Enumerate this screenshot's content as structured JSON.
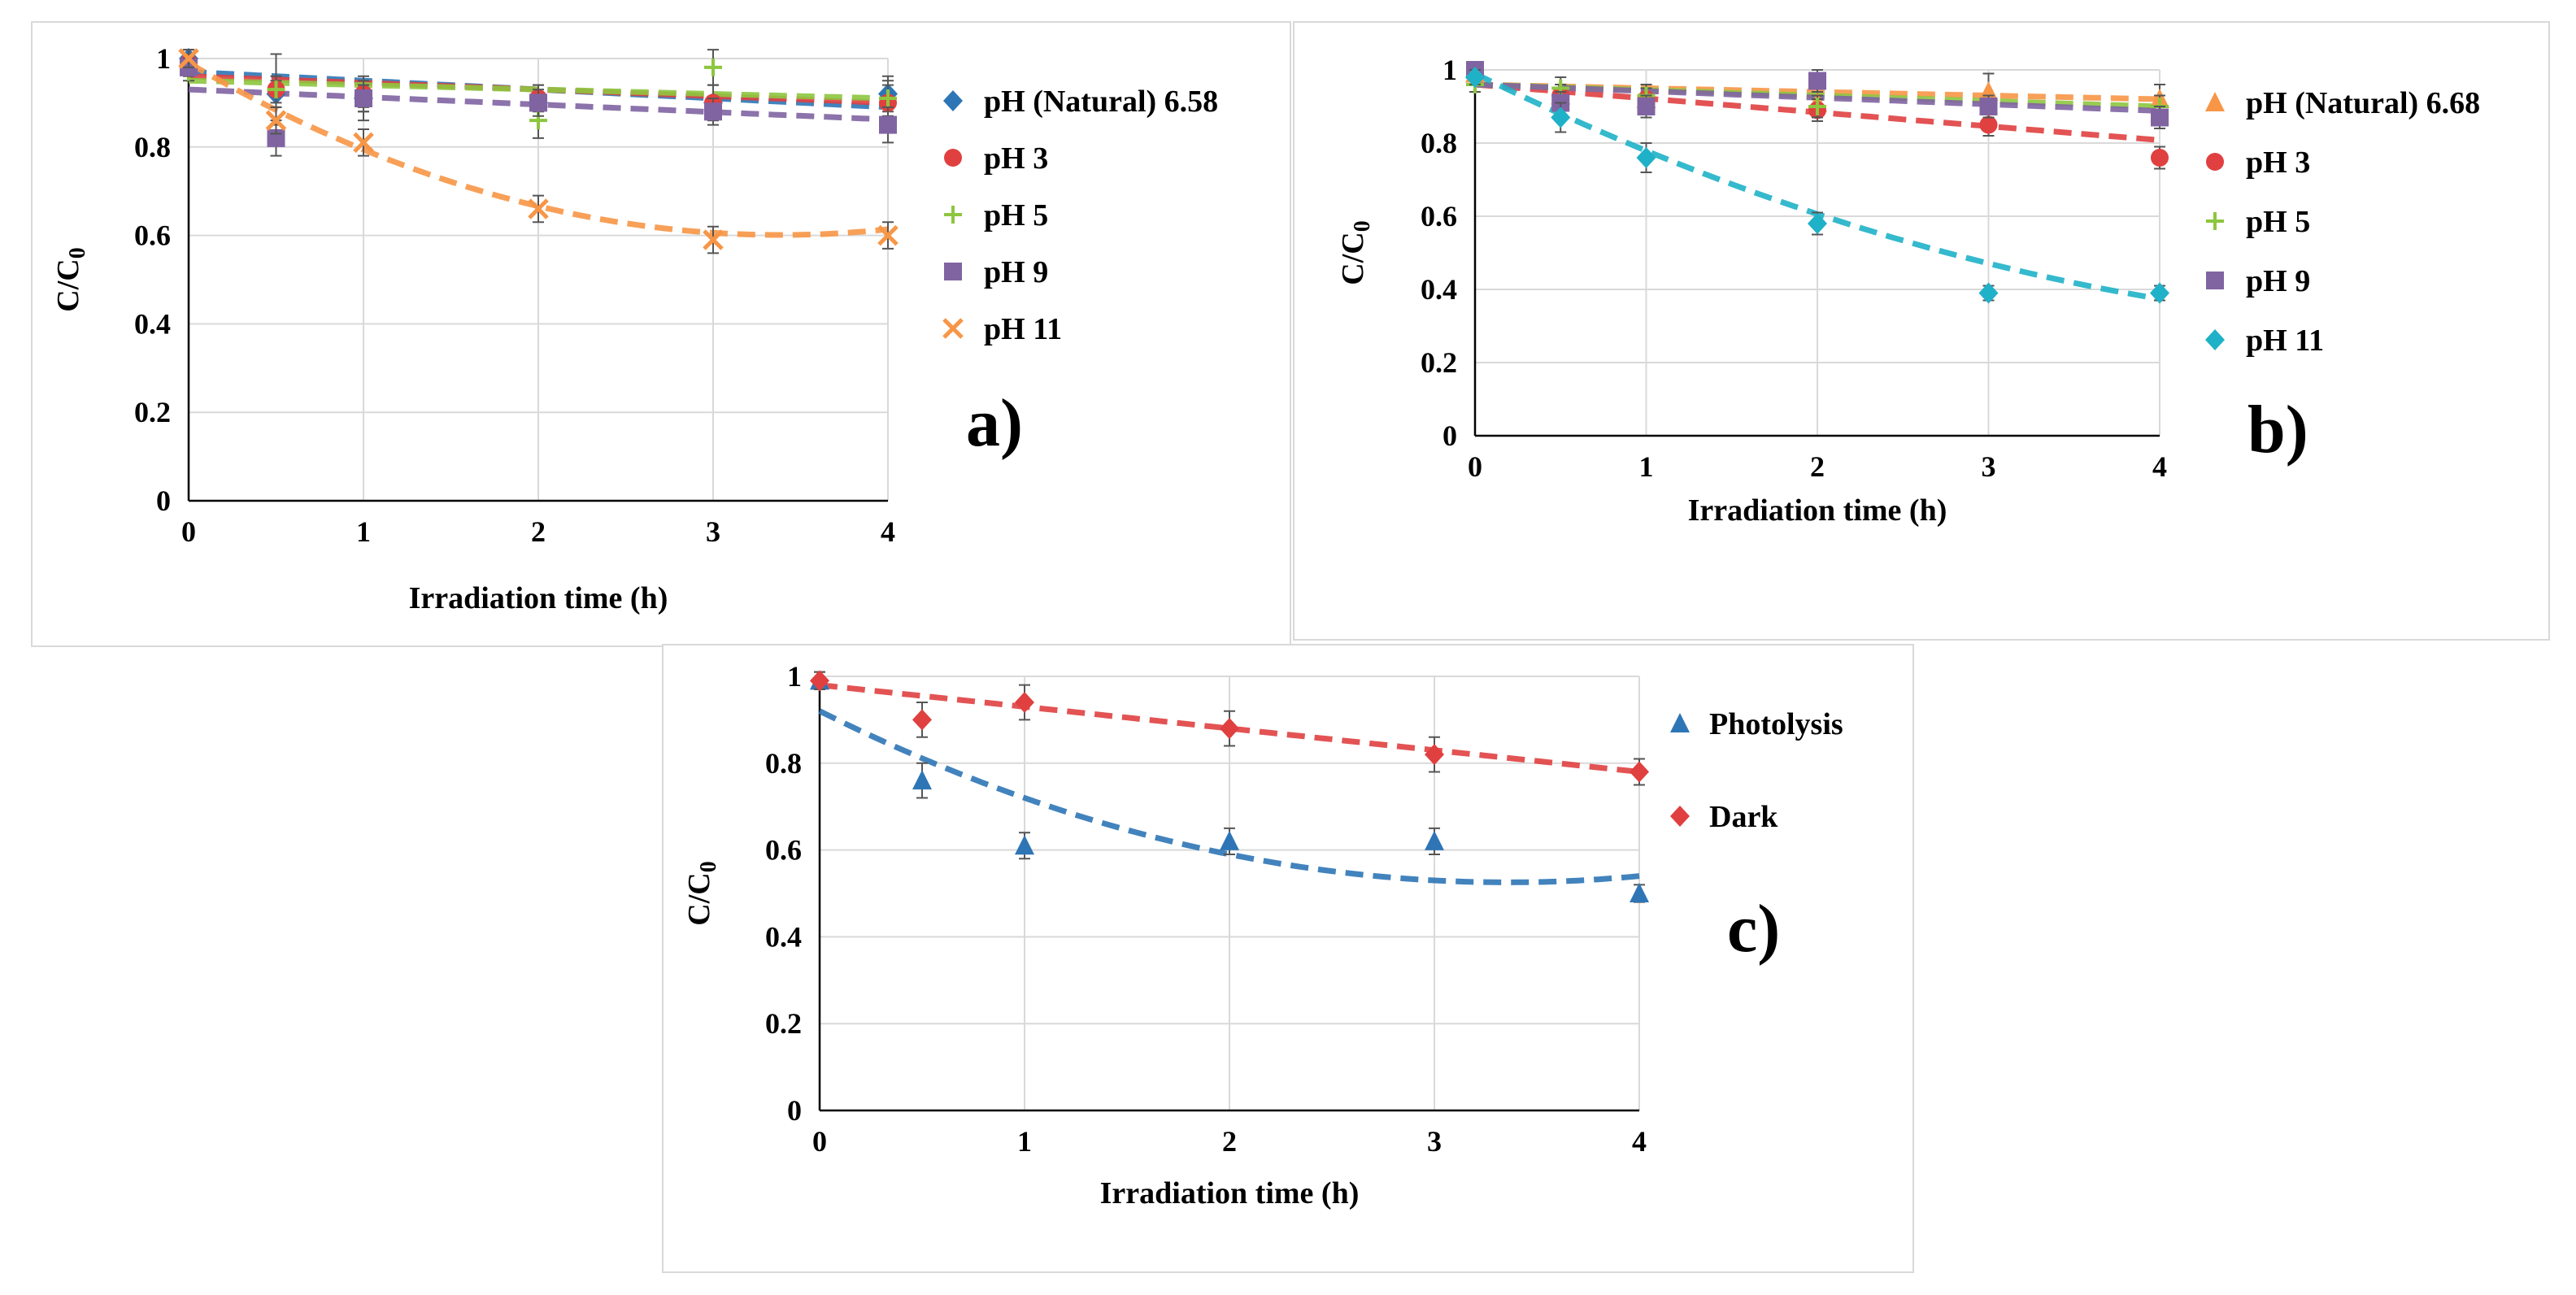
{
  "chart_data": [
    {
      "id": "a",
      "type": "scatter",
      "panel_label": "a)",
      "xlabel": "Irradiation time (h)",
      "ylabel": "C/C0",
      "xlim": [
        0,
        4
      ],
      "ylim": [
        0,
        1
      ],
      "xticks": [
        "0",
        "1",
        "2",
        "3",
        "4"
      ],
      "yticks": [
        "0",
        "0.2",
        "0.4",
        "0.6",
        "0.8",
        "1"
      ],
      "x": [
        0,
        0.5,
        1,
        2,
        3,
        4
      ],
      "series": [
        {
          "name": "pH (Natural) 6.58",
          "marker": "diamond",
          "color": "#2e75b6",
          "values": [
            1.0,
            0.92,
            0.91,
            0.9,
            0.9,
            0.92
          ],
          "err": [
            0.02,
            0.03,
            0.03,
            0.04,
            0.04,
            0.04
          ],
          "fit": [
            0.97,
            -0.02,
            0.0
          ]
        },
        {
          "name": "pH 3",
          "marker": "circle",
          "color": "#e04040",
          "values": [
            0.99,
            0.93,
            0.92,
            0.91,
            0.9,
            0.9
          ],
          "err": [
            0.02,
            0.03,
            0.03,
            0.03,
            0.04,
            0.04
          ],
          "fit": [
            0.96,
            -0.015,
            0.0
          ]
        },
        {
          "name": "pH 5",
          "marker": "plus",
          "color": "#8dc63f",
          "values": [
            0.97,
            0.93,
            0.91,
            0.86,
            0.98,
            0.91
          ],
          "err": [
            0.02,
            0.08,
            0.05,
            0.04,
            0.04,
            0.04
          ],
          "fit": [
            0.95,
            -0.01,
            0.0
          ]
        },
        {
          "name": "pH 9",
          "marker": "square",
          "color": "#8064a2",
          "values": [
            0.98,
            0.82,
            0.91,
            0.9,
            0.88,
            0.85
          ],
          "err": [
            0.02,
            0.04,
            0.03,
            0.03,
            0.03,
            0.04
          ],
          "fit": [
            0.93,
            -0.017,
            0.0
          ]
        },
        {
          "name": "pH 11",
          "marker": "x",
          "color": "#f79646",
          "values": [
            1.0,
            0.86,
            0.81,
            0.66,
            0.59,
            0.6
          ],
          "err": [
            0.02,
            0.03,
            0.03,
            0.03,
            0.03,
            0.03
          ],
          "fit": [
            0.99,
            -0.23,
            0.034
          ]
        }
      ]
    },
    {
      "id": "b",
      "type": "scatter",
      "panel_label": "b)",
      "xlabel": "Irradiation time (h)",
      "ylabel": "C/C0",
      "xlim": [
        0,
        4
      ],
      "ylim": [
        0,
        1
      ],
      "xticks": [
        "0",
        "1",
        "2",
        "3",
        "4"
      ],
      "yticks": [
        "0",
        "0.2",
        "0.4",
        "0.6",
        "0.8",
        "1"
      ],
      "x": [
        0,
        0.5,
        1,
        2,
        3,
        4
      ],
      "series": [
        {
          "name": "pH (Natural) 6.68",
          "marker": "triangle",
          "color": "#f79646",
          "values": [
            0.99,
            0.93,
            0.92,
            0.91,
            0.94,
            0.92
          ],
          "err": [
            0.02,
            0.03,
            0.03,
            0.03,
            0.05,
            0.04
          ],
          "fit": [
            0.96,
            -0.01,
            0.0
          ]
        },
        {
          "name": "pH 3",
          "marker": "circle",
          "color": "#e04040",
          "values": [
            0.99,
            0.93,
            0.92,
            0.89,
            0.85,
            0.76
          ],
          "err": [
            0.02,
            0.03,
            0.03,
            0.03,
            0.03,
            0.03
          ],
          "fit": [
            0.96,
            -0.038,
            0.0
          ]
        },
        {
          "name": "pH 5",
          "marker": "plus",
          "color": "#8dc63f",
          "values": [
            0.96,
            0.95,
            0.93,
            0.9,
            0.9,
            0.9
          ],
          "err": [
            0.02,
            0.03,
            0.03,
            0.03,
            0.03,
            0.03
          ],
          "fit": [
            0.96,
            -0.015,
            0.0
          ]
        },
        {
          "name": "pH 9",
          "marker": "square",
          "color": "#8064a2",
          "values": [
            1.0,
            0.91,
            0.9,
            0.97,
            0.9,
            0.87
          ],
          "err": [
            0.02,
            0.03,
            0.03,
            0.03,
            0.03,
            0.03
          ],
          "fit": [
            0.96,
            -0.018,
            0.0
          ]
        },
        {
          "name": "pH 11",
          "marker": "diamond",
          "color": "#1fb1c8",
          "values": [
            0.98,
            0.87,
            0.76,
            0.58,
            0.39,
            0.39
          ],
          "err": [
            0.02,
            0.04,
            0.04,
            0.03,
            0.02,
            0.02
          ],
          "fit": [
            0.99,
            -0.23,
            0.019
          ]
        }
      ]
    },
    {
      "id": "c",
      "type": "scatter",
      "panel_label": "c)",
      "xlabel": "Irradiation time (h)",
      "ylabel": "C/C0",
      "xlim": [
        0,
        4
      ],
      "ylim": [
        0,
        1
      ],
      "xticks": [
        "0",
        "1",
        "2",
        "3",
        "4"
      ],
      "yticks": [
        "0",
        "0.2",
        "0.4",
        "0.6",
        "0.8",
        "1"
      ],
      "x": [
        0,
        0.5,
        1,
        2,
        3,
        4
      ],
      "series": [
        {
          "name": "Photolysis",
          "marker": "triangle",
          "color": "#2e75b6",
          "values": [
            0.99,
            0.76,
            0.61,
            0.62,
            0.62,
            0.5
          ],
          "err": [
            0.02,
            0.04,
            0.03,
            0.03,
            0.03,
            0.02
          ],
          "fit": [
            0.92,
            -0.235,
            0.035
          ]
        },
        {
          "name": "Dark",
          "marker": "diamond",
          "color": "#e04040",
          "values": [
            0.99,
            0.9,
            0.94,
            0.88,
            0.82,
            0.78
          ],
          "err": [
            0.02,
            0.04,
            0.04,
            0.04,
            0.04,
            0.03
          ],
          "fit": [
            0.98,
            -0.05,
            0.0
          ]
        }
      ]
    }
  ]
}
